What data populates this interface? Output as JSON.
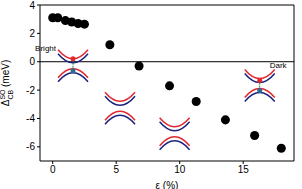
{
  "chart_data": {
    "type": "scatter",
    "x_label": "ε (%)",
    "y_label": {
      "base": "Δ",
      "sup": "SO",
      "sub": "CB",
      "rest": " (meV)"
    },
    "x": [
      0,
      0.4,
      1,
      1.5,
      2,
      2.5,
      4.5,
      6.8,
      9.2,
      11.3,
      13.6,
      15.9,
      18
    ],
    "values": [
      3.1,
      3.1,
      2.9,
      2.8,
      2.7,
      2.65,
      1.2,
      -0.3,
      -1.7,
      -2.8,
      -4.1,
      -5.2,
      -6.1
    ],
    "color": "#000000",
    "marker": "circle",
    "xlim": [
      -1,
      19
    ],
    "ylim": [
      -7,
      4
    ],
    "xticks": [
      0,
      5,
      10,
      15
    ],
    "yticks": [
      -6,
      -4,
      -2,
      0,
      2,
      4
    ],
    "hline": 0,
    "annotations": [
      "Bright",
      "Dark"
    ]
  }
}
